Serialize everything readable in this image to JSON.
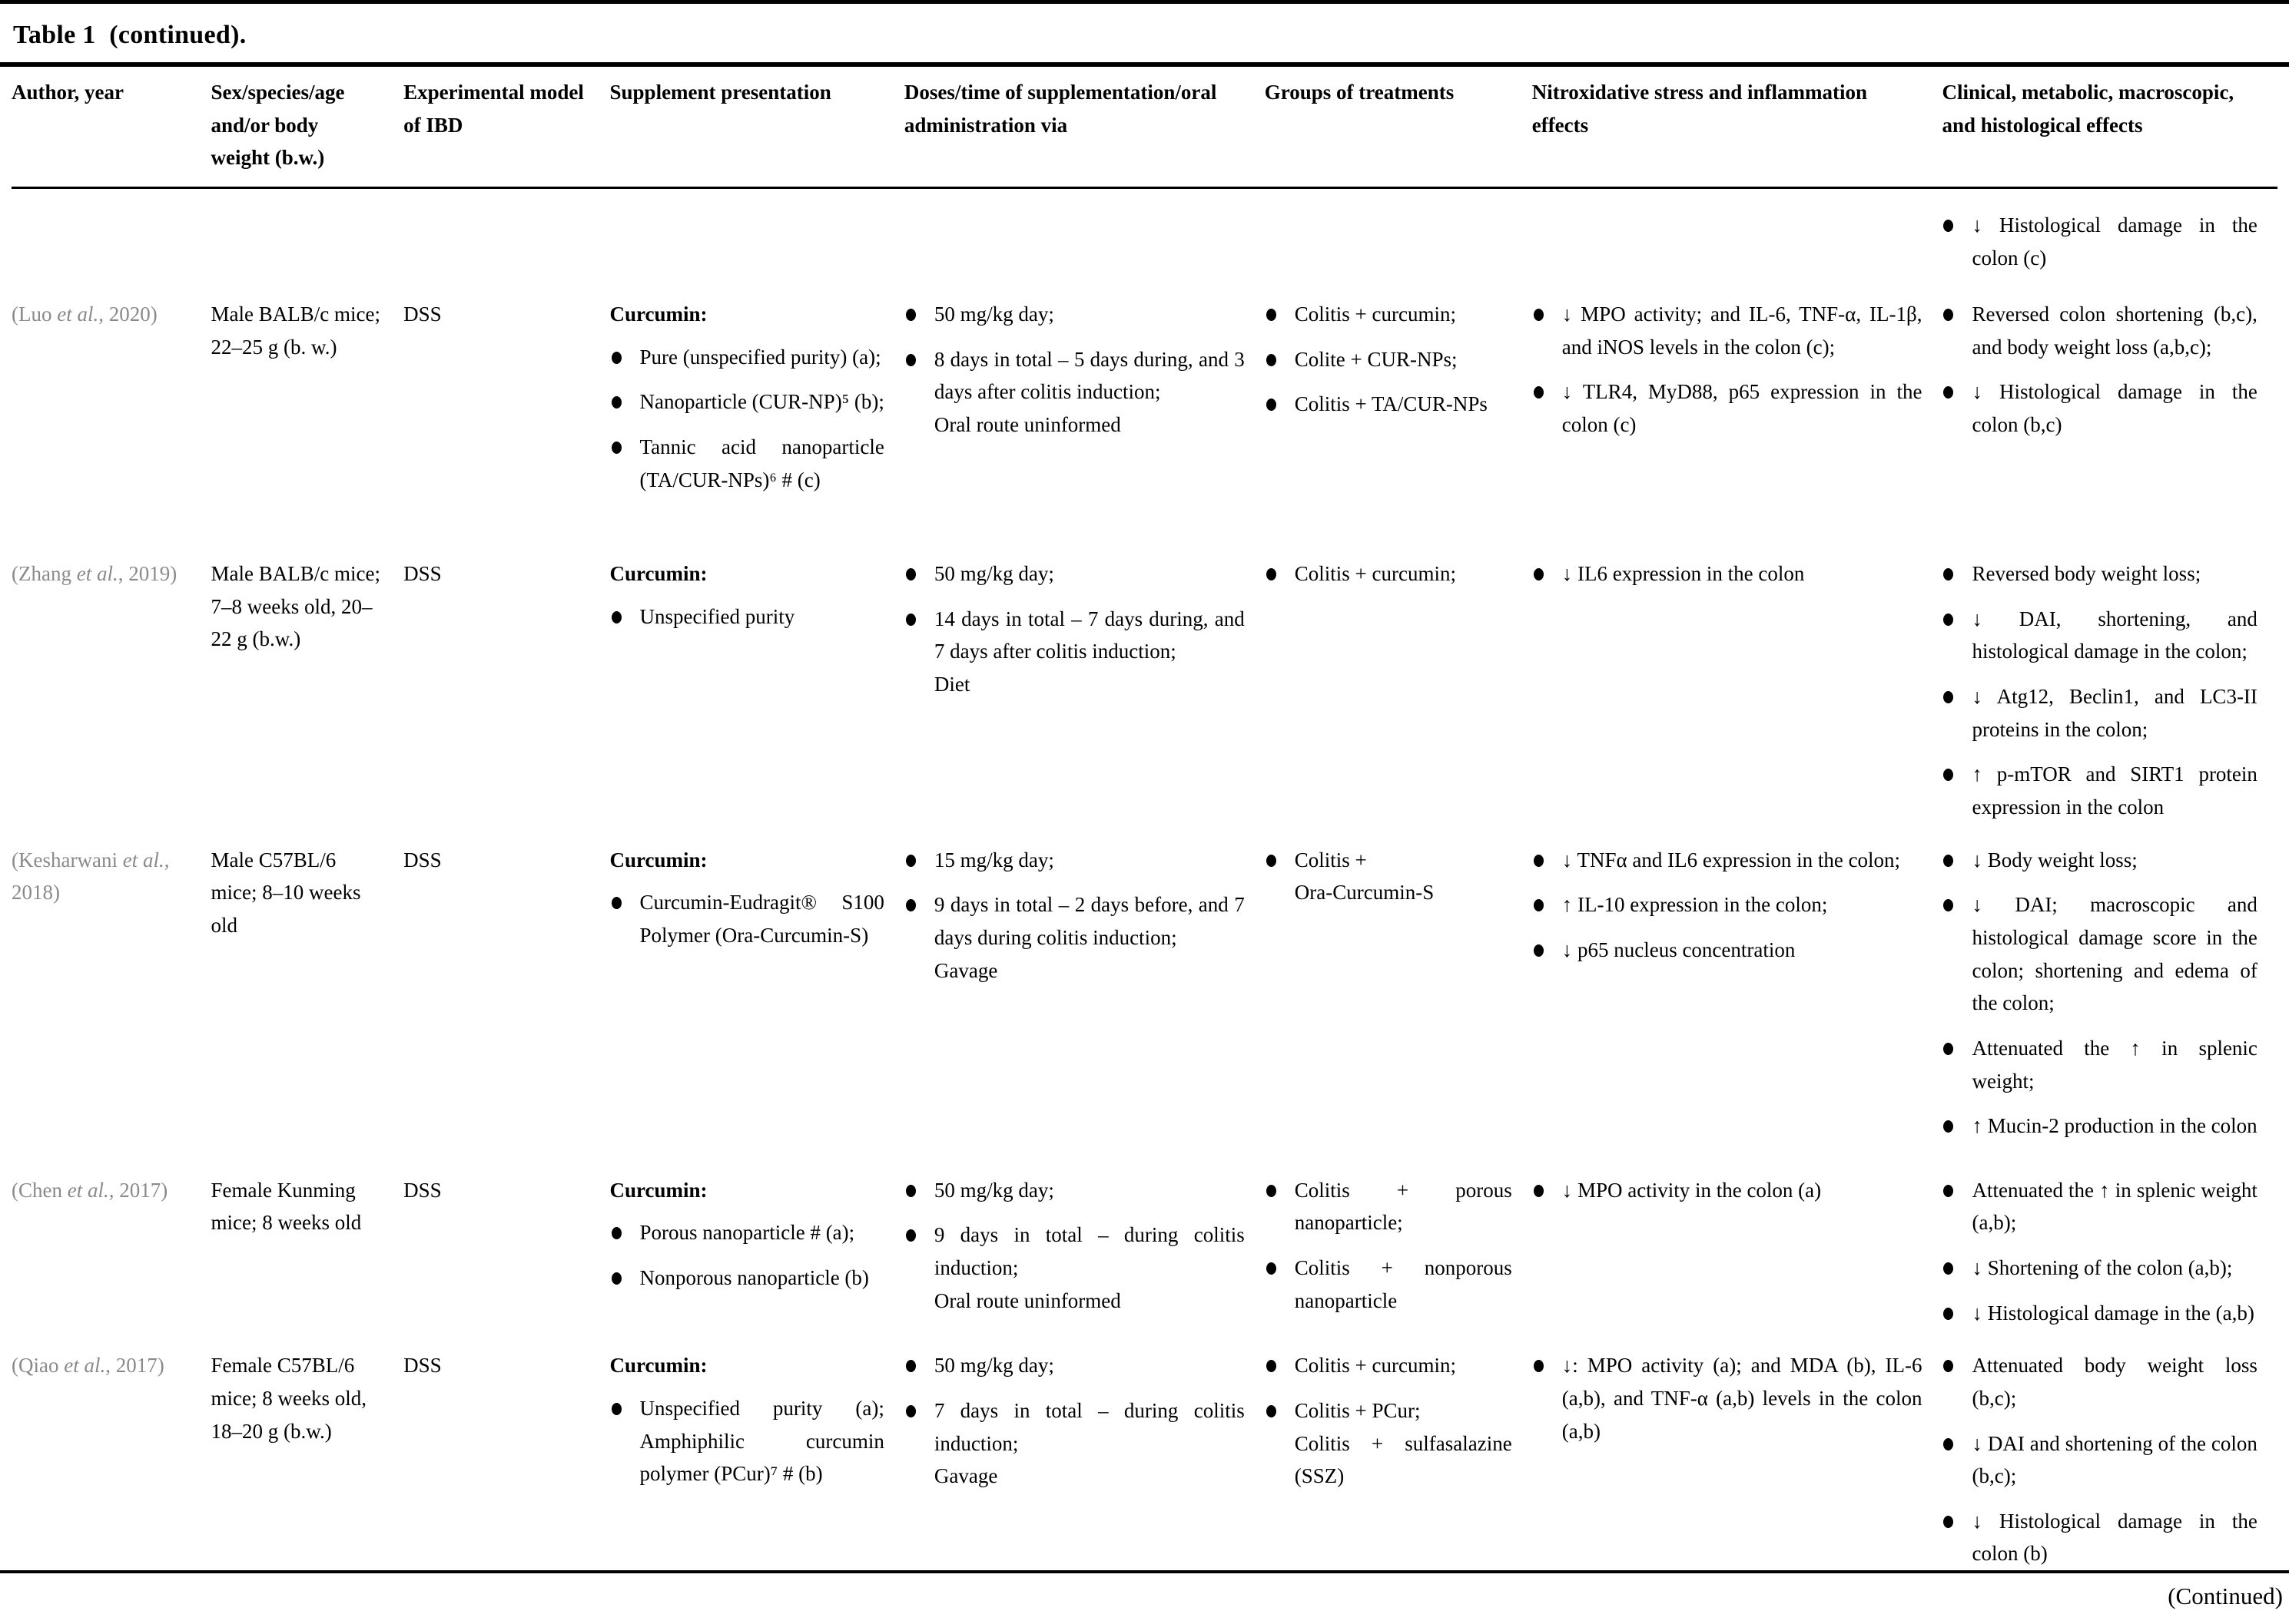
{
  "page": {
    "title": "Table 1  (continued).",
    "continued": "(Continued)"
  },
  "styles": {
    "author_citation_color": "#8a8a8a",
    "text_color": "#000000",
    "rule_color": "#000000"
  },
  "columns": [
    "Author, year",
    "Sex/species/age\nand/or body\nweight (b.w.)",
    "Experimental model\nof IBD",
    "Supplement presentation",
    "Doses/time of supplementation/oral\nadministration via",
    "Groups of treatments",
    "Nitroxidative stress and inflammation\neffects",
    "Clinical, metabolic, macroscopic,\nand histological effects"
  ],
  "rows": [
    {
      "author": null,
      "subject": "",
      "model": "",
      "supplement": null,
      "doses": [],
      "groups": [],
      "nitroxidative": [],
      "clinical": [
        "↓ Histological damage in the colon (c)"
      ]
    },
    {
      "author": {
        "pre": "(Luo ",
        "etal": "et al.",
        "post": ", 2020)"
      },
      "subject": "Male BALB/c mice; 22–25 g (b. w.)",
      "model": "DSS",
      "supplement": {
        "heading": "Curcumin:",
        "bullets": [
          "Pure (unspecified purity) (a);",
          "Nanoparticle (CUR-NP)⁵ (b);",
          "Tannic acid nanoparticle (TA/CUR-NPs)⁶ # (c)"
        ]
      },
      "doses": [
        "50 mg/kg day;",
        "8 days in total – 5 days during, and 3 days after colitis induction;\nOral route uninformed"
      ],
      "groups": [
        "Colitis + curcumin;",
        "Colite + CUR-NPs;",
        "Colitis + TA/CUR-NPs"
      ],
      "nitroxidative": [
        "↓ MPO activity; and IL-6, TNF-α, IL-1β, and iNOS levels in the colon (c);",
        "↓ TLR4, MyD88, p65 expression in the colon (c)"
      ],
      "clinical": [
        "Reversed colon shortening (b,c), and body weight loss (a,b,c);",
        "↓ Histological damage in the colon (b,c)"
      ]
    },
    {
      "author": {
        "pre": "(Zhang ",
        "etal": "et al.",
        "post": ", 2019)"
      },
      "subject": "Male BALB/c mice; 7–8 weeks old, 20–22 g (b.w.)",
      "model": "DSS",
      "supplement": {
        "heading": "Curcumin:",
        "bullets": [
          "Unspecified purity"
        ]
      },
      "doses": [
        "50 mg/kg day;",
        "14 days in total – 7 days during, and 7 days after colitis induction;\nDiet"
      ],
      "groups": [
        "Colitis + curcumin;"
      ],
      "nitroxidative": [
        "↓ IL6 expression in the colon"
      ],
      "clinical": [
        "Reversed body weight loss;",
        "↓ DAI, shortening, and histological damage in the colon;",
        "↓ Atg12, Beclin1, and LC3-II proteins in the colon;",
        "↑ p-mTOR and SIRT1 protein expression in the colon"
      ]
    },
    {
      "author": {
        "pre": "(Kesharwani ",
        "etal": "et al.",
        "post": ", 2018)"
      },
      "subject": "Male C57BL/6 mice; 8–10 weeks old",
      "model": "DSS",
      "supplement": {
        "heading": "Curcumin:",
        "bullets": [
          "Curcumin-Eudragit® S100 Polymer (Ora-Curcumin-S)"
        ]
      },
      "doses": [
        "15 mg/kg day;",
        "9 days in total – 2 days before, and 7 days during colitis induction;\nGavage"
      ],
      "groups": [
        "Colitis +\nOra-Curcumin-S"
      ],
      "nitroxidative": [
        "↓ TNFα and IL6 expression in the colon;",
        "↑ IL-10 expression in the colon;",
        "↓ p65 nucleus concentration"
      ],
      "clinical": [
        "↓ Body weight loss;",
        "↓ DAI; macroscopic and histological damage score in the colon; shortening and edema of the colon;",
        "Attenuated the ↑ in splenic weight;",
        "↑ Mucin-2 production in the colon"
      ]
    },
    {
      "author": {
        "pre": "(Chen ",
        "etal": "et al.",
        "post": ", 2017)"
      },
      "subject": "Female Kunming mice; 8 weeks old",
      "model": "DSS",
      "supplement": {
        "heading": "Curcumin:",
        "bullets": [
          "Porous nanoparticle # (a);",
          "Nonporous nanoparticle (b)"
        ]
      },
      "doses": [
        "50 mg/kg day;",
        "9 days in total – during colitis induction;\nOral route uninformed"
      ],
      "groups": [
        "Colitis + porous nanoparticle;",
        "Colitis + nonporous nanoparticle"
      ],
      "nitroxidative": [
        "↓ MPO activity in the colon (a)"
      ],
      "clinical": [
        "Attenuated the ↑ in splenic weight (a,b);",
        "↓ Shortening of the colon (a,b);",
        "↓ Histological damage in the (a,b)"
      ]
    },
    {
      "author": {
        "pre": "(Qiao ",
        "etal": "et al.",
        "post": ", 2017)"
      },
      "subject": "Female C57BL/6 mice; 8 weeks old, 18–20 g (b.w.)",
      "model": "DSS",
      "supplement": {
        "heading": "Curcumin:",
        "bullets": [
          "Unspecified purity (a); Amphiphilic curcumin polymer (PCur)⁷ # (b)"
        ]
      },
      "doses": [
        "50 mg/kg day;",
        "7 days in total – during colitis induction;\nGavage"
      ],
      "groups": [
        "Colitis + curcumin;",
        "Colitis + PCur;\nColitis + sulfasalazine (SSZ)"
      ],
      "nitroxidative": [
        "↓: MPO activity (a); and MDA (b), IL-6 (a,b), and TNF-α (a,b) levels in the colon (a,b)"
      ],
      "clinical": [
        "Attenuated body weight loss (b,c);",
        "↓ DAI and shortening of the colon (b,c);",
        "↓ Histological damage in the colon (b)"
      ]
    }
  ]
}
